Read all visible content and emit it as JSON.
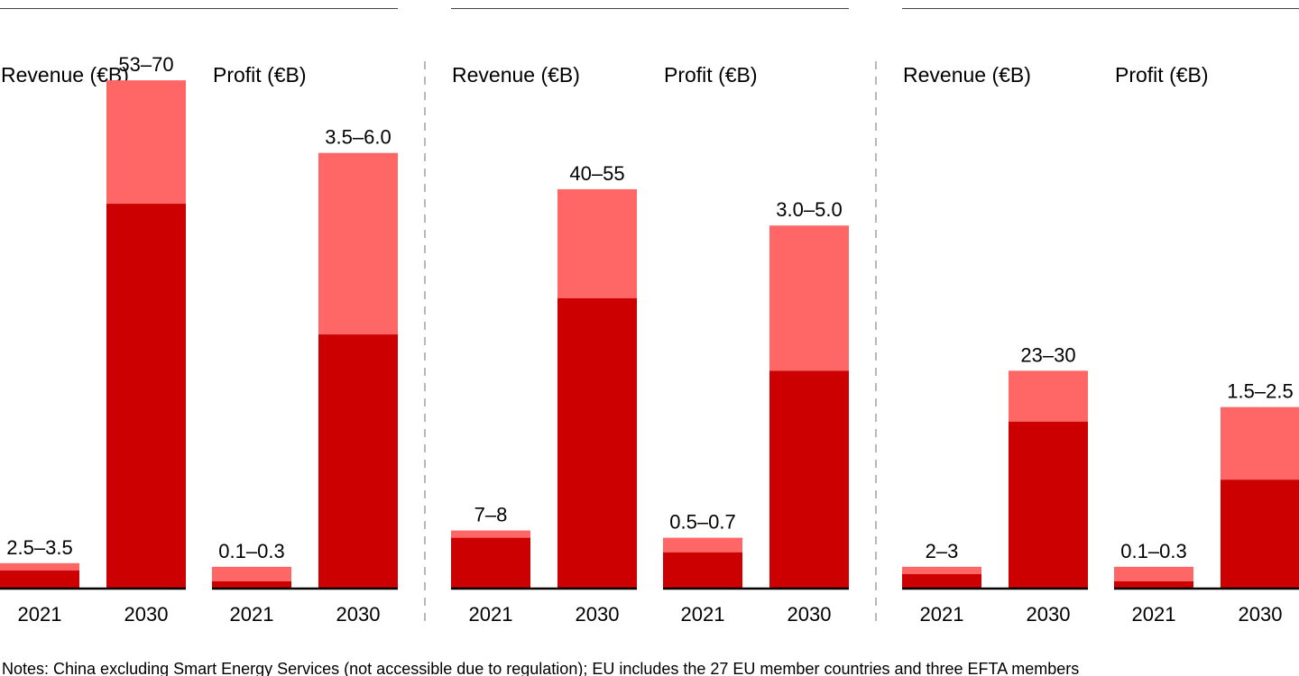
{
  "colors": {
    "low": "#cc0000",
    "range": "#ff6666",
    "axis": "#000000",
    "divider": "#888888",
    "rule": "#444444"
  },
  "chart_data": [
    {
      "title": "",
      "charts": [
        {
          "label": "Revenue (€B)",
          "type": "bar",
          "stacked_range": true,
          "categories": [
            "2021",
            "2030"
          ],
          "low": [
            2.5,
            53
          ],
          "high": [
            3.5,
            70
          ],
          "data_labels": [
            "2.5–3.5",
            "53–70"
          ],
          "ylim": [
            0,
            72
          ]
        },
        {
          "label": "Profit (€B)",
          "type": "bar",
          "stacked_range": true,
          "categories": [
            "2021",
            "2030"
          ],
          "low": [
            0.1,
            3.5
          ],
          "high": [
            0.3,
            6.0
          ],
          "data_labels": [
            "0.1–0.3",
            "3.5–6.0"
          ],
          "ylim": [
            0,
            7.2
          ]
        }
      ]
    },
    {
      "title": "",
      "charts": [
        {
          "label": "Revenue (€B)",
          "type": "bar",
          "stacked_range": true,
          "categories": [
            "2021",
            "2030"
          ],
          "low": [
            7,
            40
          ],
          "high": [
            8,
            55
          ],
          "data_labels": [
            "7–8",
            "40–55"
          ],
          "ylim": [
            0,
            72
          ]
        },
        {
          "label": "Profit (€B)",
          "type": "bar",
          "stacked_range": true,
          "categories": [
            "2021",
            "2030"
          ],
          "low": [
            0.5,
            3.0
          ],
          "high": [
            0.7,
            5.0
          ],
          "data_labels": [
            "0.5–0.7",
            "3.0–5.0"
          ],
          "ylim": [
            0,
            7.2
          ]
        }
      ]
    },
    {
      "title": "",
      "charts": [
        {
          "label": "Revenue (€B)",
          "type": "bar",
          "stacked_range": true,
          "categories": [
            "2021",
            "2030"
          ],
          "low": [
            2,
            23
          ],
          "high": [
            3,
            30
          ],
          "data_labels": [
            "2–3",
            "23–30"
          ],
          "ylim": [
            0,
            72
          ]
        },
        {
          "label": "Profit (€B)",
          "type": "bar",
          "stacked_range": true,
          "categories": [
            "2021",
            "2030"
          ],
          "low": [
            0.1,
            1.5
          ],
          "high": [
            0.3,
            2.5
          ],
          "data_labels": [
            "0.1–0.3",
            "1.5–2.5"
          ],
          "ylim": [
            0,
            7.2
          ]
        }
      ]
    }
  ],
  "notes": "Notes: China excluding Smart Energy Services (not accessible due to regulation); EU includes the 27 EU member countries and three EFTA members"
}
